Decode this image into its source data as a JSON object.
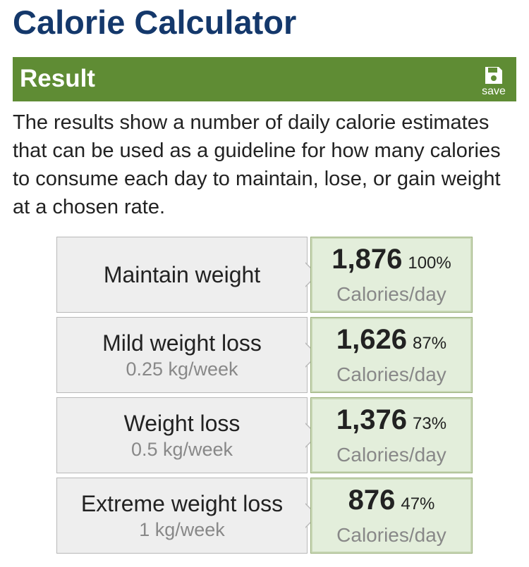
{
  "page": {
    "title": "Calorie Calculator"
  },
  "result_section": {
    "title": "Result",
    "save_label": "save",
    "save_icon": "floppy-disk-icon",
    "header_color": "#5f8c34",
    "description": "The results show a number of daily calorie estimates that can be used as a guideline for how many calories to consume each day to maintain, lose, or gain weight at a chosen rate."
  },
  "results": [
    {
      "label": "Maintain weight",
      "rate": "",
      "calories": "1,876",
      "percent": "100%",
      "unit": "Calories/day"
    },
    {
      "label": "Mild weight loss",
      "rate": "0.25 kg/week",
      "calories": "1,626",
      "percent": "87%",
      "unit": "Calories/day"
    },
    {
      "label": "Weight loss",
      "rate": "0.5 kg/week",
      "calories": "1,376",
      "percent": "73%",
      "unit": "Calories/day"
    },
    {
      "label": "Extreme weight loss",
      "rate": "1 kg/week",
      "calories": "876",
      "percent": "47%",
      "unit": "Calories/day"
    }
  ]
}
